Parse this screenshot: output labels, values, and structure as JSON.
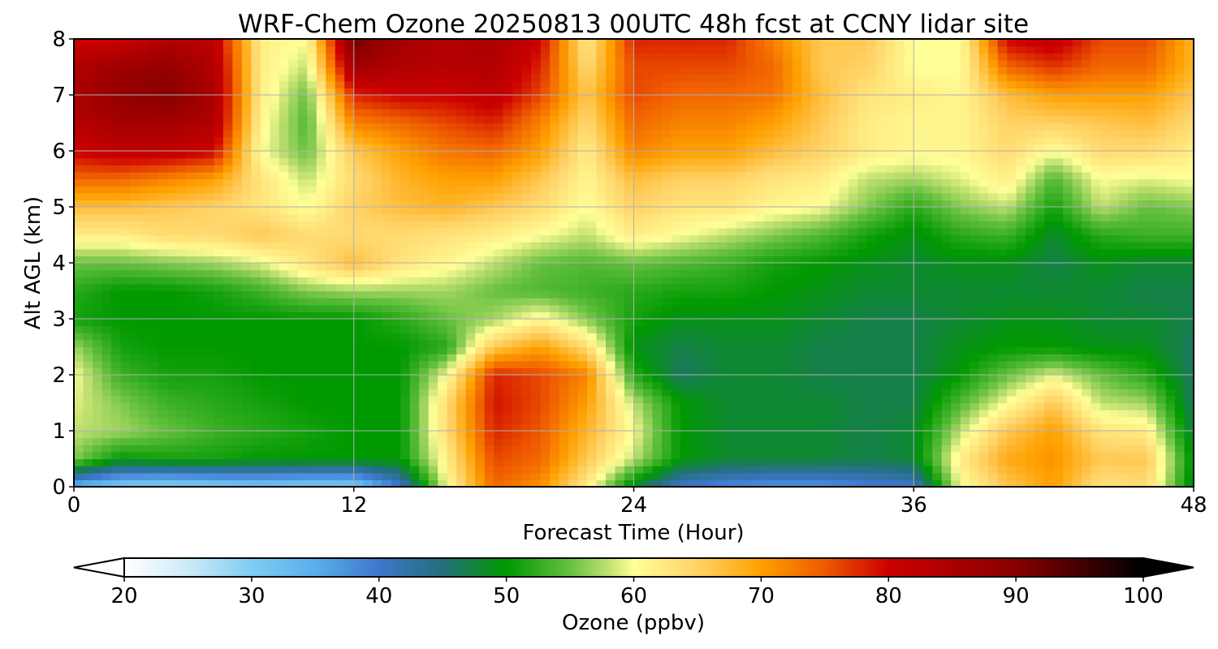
{
  "chart_data": {
    "type": "heatmap",
    "title": "WRF-Chem Ozone  20250813 00UTC 48h fcst at CCNY lidar site",
    "xlabel": "Forecast Time (Hour)",
    "ylabel": "Alt AGL (km)",
    "xlim": [
      0,
      48
    ],
    "ylim": [
      0,
      8
    ],
    "x_ticks": [
      "0",
      "12",
      "24",
      "36",
      "48"
    ],
    "y_ticks": [
      "0",
      "1",
      "2",
      "3",
      "4",
      "5",
      "6",
      "7",
      "8"
    ],
    "grid": true,
    "hours": [
      0,
      2,
      4,
      6,
      8,
      10,
      12,
      14,
      16,
      18,
      20,
      22,
      24,
      26,
      28,
      30,
      32,
      34,
      36,
      38,
      40,
      42,
      44,
      46,
      48
    ],
    "altitudes_km": [
      0,
      0.5,
      1,
      1.5,
      2,
      2.5,
      3,
      3.5,
      4,
      4.5,
      5,
      5.5,
      6,
      6.5,
      7,
      7.5,
      8
    ],
    "ozone_ppbv_by_altitude": [
      [
        34,
        30,
        29,
        30,
        31,
        30,
        30,
        40,
        60,
        74,
        71,
        62,
        48,
        40,
        38,
        37,
        37,
        39,
        40,
        60,
        66,
        70,
        63,
        64,
        48
      ],
      [
        56,
        50,
        51,
        51,
        50,
        50,
        50,
        50,
        62,
        76,
        74,
        66,
        58,
        50,
        48,
        48,
        48,
        47,
        48,
        62,
        69,
        71,
        66,
        66,
        49
      ],
      [
        58,
        57,
        55,
        53,
        52,
        51,
        50,
        50,
        64,
        78,
        75,
        68,
        60,
        50,
        48,
        48,
        48,
        47,
        48,
        58,
        66,
        70,
        63,
        62,
        47
      ],
      [
        59,
        56,
        53,
        52,
        51,
        50,
        50,
        50,
        64,
        79,
        76,
        70,
        58,
        50,
        48,
        48,
        48,
        47,
        47,
        54,
        60,
        66,
        58,
        57,
        46
      ],
      [
        60,
        53,
        51,
        51,
        50,
        50,
        50,
        50,
        60,
        78,
        76,
        72,
        52,
        46,
        48,
        48,
        47,
        47,
        47,
        50,
        55,
        59,
        55,
        52,
        46
      ],
      [
        57,
        51,
        50,
        50,
        50,
        50,
        50,
        50,
        52,
        66,
        70,
        64,
        49,
        47,
        48,
        48,
        47,
        47,
        47,
        49,
        50,
        50,
        49,
        49,
        46
      ],
      [
        51,
        50,
        50,
        50,
        50,
        50,
        50,
        52,
        55,
        57,
        61,
        56,
        51,
        49,
        49,
        49,
        48,
        47,
        47,
        48,
        49,
        49,
        48,
        48,
        47
      ],
      [
        52,
        50,
        50,
        51,
        53,
        56,
        57,
        57,
        57,
        55,
        54,
        53,
        52,
        51,
        51,
        50,
        49,
        48,
        48,
        48,
        48,
        48,
        48,
        47,
        47
      ],
      [
        55,
        55,
        56,
        57,
        59,
        63,
        67,
        63,
        61,
        58,
        55,
        54,
        55,
        54,
        53,
        51,
        50,
        49,
        48,
        49,
        49,
        47,
        49,
        48,
        48
      ],
      [
        62,
        62,
        64,
        64,
        66,
        64,
        64,
        64,
        63,
        62,
        60,
        58,
        62,
        60,
        58,
        56,
        54,
        51,
        49,
        52,
        53,
        48,
        52,
        53,
        53
      ],
      [
        67,
        67,
        66,
        65,
        63,
        60,
        65,
        67,
        68,
        66,
        64,
        60,
        65,
        63,
        63,
        61,
        60,
        56,
        52,
        56,
        58,
        51,
        58,
        55,
        56
      ],
      [
        74,
        74,
        72,
        70,
        63,
        58,
        64,
        68,
        70,
        70,
        66,
        61,
        67,
        65,
        65,
        63,
        62,
        58,
        57,
        59,
        62,
        54,
        60,
        59,
        60
      ],
      [
        80,
        82,
        82,
        80,
        60,
        55,
        66,
        70,
        73,
        74,
        70,
        62,
        72,
        70,
        70,
        67,
        65,
        62,
        61,
        61,
        64,
        60,
        64,
        64,
        62
      ],
      [
        83,
        86,
        86,
        84,
        61,
        54,
        72,
        74,
        76,
        78,
        72,
        64,
        74,
        72,
        72,
        70,
        66,
        62,
        61,
        61,
        65,
        65,
        66,
        67,
        64
      ],
      [
        85,
        88,
        90,
        85,
        62,
        55,
        78,
        80,
        80,
        82,
        76,
        66,
        76,
        74,
        74,
        73,
        67,
        63,
        62,
        61,
        67,
        70,
        70,
        70,
        66
      ],
      [
        84,
        87,
        88,
        84,
        62,
        58,
        86,
        84,
        83,
        84,
        78,
        64,
        76,
        76,
        76,
        74,
        66,
        65,
        60,
        60,
        74,
        77,
        74,
        74,
        68
      ],
      [
        80,
        80,
        84,
        82,
        62,
        60,
        92,
        86,
        84,
        85,
        80,
        62,
        78,
        78,
        78,
        72,
        66,
        66,
        60,
        60,
        80,
        82,
        76,
        76,
        68
      ]
    ],
    "colorbar": {
      "label": "Ozone  (ppbv)",
      "min": 20,
      "max": 100,
      "ticks": [
        "20",
        "30",
        "40",
        "50",
        "60",
        "70",
        "80",
        "90",
        "100"
      ],
      "extend": "both",
      "stops": [
        {
          "v": 20,
          "c": "#ffffff"
        },
        {
          "v": 25,
          "c": "#cdeaf8"
        },
        {
          "v": 30,
          "c": "#7fccf2"
        },
        {
          "v": 35,
          "c": "#5aaeeb"
        },
        {
          "v": 40,
          "c": "#3d77cc"
        },
        {
          "v": 45,
          "c": "#236f7a"
        },
        {
          "v": 50,
          "c": "#009900"
        },
        {
          "v": 55,
          "c": "#66c040"
        },
        {
          "v": 58,
          "c": "#c0e070"
        },
        {
          "v": 60,
          "c": "#ffff99"
        },
        {
          "v": 65,
          "c": "#ffd266"
        },
        {
          "v": 70,
          "c": "#ffa000"
        },
        {
          "v": 75,
          "c": "#ee5a00"
        },
        {
          "v": 80,
          "c": "#cc0000"
        },
        {
          "v": 90,
          "c": "#880000"
        },
        {
          "v": 100,
          "c": "#000000"
        }
      ]
    }
  }
}
